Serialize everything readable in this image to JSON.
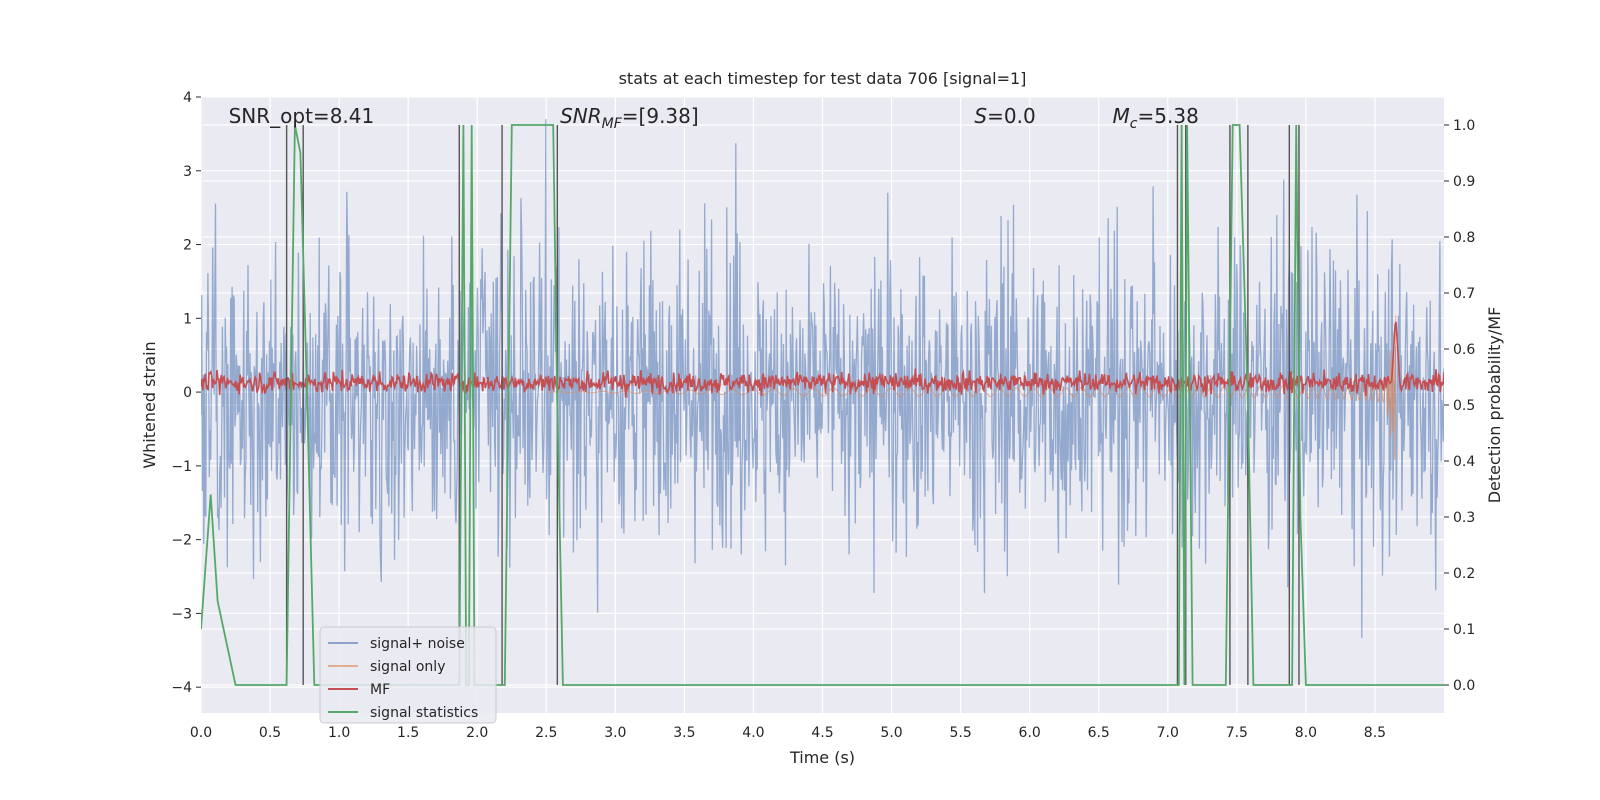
{
  "chart_data": {
    "type": "line",
    "title": "stats at each timestep for test data 706 [signal=1]",
    "xlabel": "Time (s)",
    "ylabel": "Whitened strain",
    "ylabel_right": "Detection probability/MF",
    "xlim": [
      0.0,
      9.0
    ],
    "ylim": [
      -4.35,
      4.0
    ],
    "ylim_right": [
      -0.05,
      1.05
    ],
    "xticks": [
      "0.0",
      "0.5",
      "1.0",
      "1.5",
      "2.0",
      "2.5",
      "3.0",
      "3.5",
      "4.0",
      "4.5",
      "5.0",
      "5.5",
      "6.0",
      "6.5",
      "7.0",
      "7.5",
      "8.0",
      "8.5"
    ],
    "yticks": [
      "4",
      "3",
      "2",
      "1",
      "0",
      "−1",
      "−2",
      "−3",
      "−4"
    ],
    "yticks_right": [
      "1.0",
      "0.9",
      "0.8",
      "0.7",
      "0.6",
      "0.5",
      "0.4",
      "0.3",
      "0.2",
      "0.1",
      "0.0"
    ],
    "annotations": [
      {
        "text": "SNR_opt=8.41",
        "x": 0.2
      },
      {
        "text": "SNR_MF=[9.38]",
        "x": 2.6
      },
      {
        "text": "S=0.0",
        "x": 5.6
      },
      {
        "text": "M_c=5.38",
        "x": 6.6
      }
    ],
    "legend": [
      "signal+ noise",
      "signal only",
      "MF",
      "signal statistics"
    ],
    "legend_position": "lower-left",
    "grid": true,
    "colors": {
      "signal_noise": "#4c72b0",
      "signal_only": "#dd8452",
      "mf": "#c44e52",
      "signal_statistics": "#55a868",
      "vlines": "#555555",
      "background": "#eaeaf2"
    },
    "series": [
      {
        "name": "signal statistics",
        "axis": "right",
        "x": [
          0.0,
          0.07,
          0.12,
          0.25,
          0.62,
          0.68,
          0.72,
          0.77,
          0.82,
          1.87,
          1.9,
          1.92,
          1.94,
          1.96,
          1.98,
          2.03,
          2.2,
          2.25,
          2.55,
          2.58,
          2.62,
          7.05,
          7.08,
          7.1,
          7.12,
          7.14,
          7.18,
          7.42,
          7.47,
          7.52,
          7.58,
          7.62,
          7.87,
          7.9,
          7.93,
          7.96,
          8.0,
          8.05,
          9.0
        ],
        "y": [
          0.1,
          0.34,
          0.15,
          0.0,
          0.0,
          1.0,
          0.95,
          0.5,
          0.0,
          0.0,
          1.0,
          0.0,
          0.0,
          1.0,
          0.0,
          0.0,
          0.0,
          1.0,
          1.0,
          0.5,
          0.0,
          0.0,
          0.0,
          1.0,
          0.0,
          1.0,
          0.0,
          0.0,
          1.0,
          1.0,
          0.5,
          0.0,
          0.0,
          0.0,
          1.0,
          0.3,
          0.0,
          0.0,
          0.0
        ]
      },
      {
        "name": "vertical markers",
        "x": [
          0.62,
          0.74,
          1.87,
          2.18,
          2.58,
          7.07,
          7.13,
          7.45,
          7.58,
          7.88,
          7.95
        ]
      }
    ]
  }
}
